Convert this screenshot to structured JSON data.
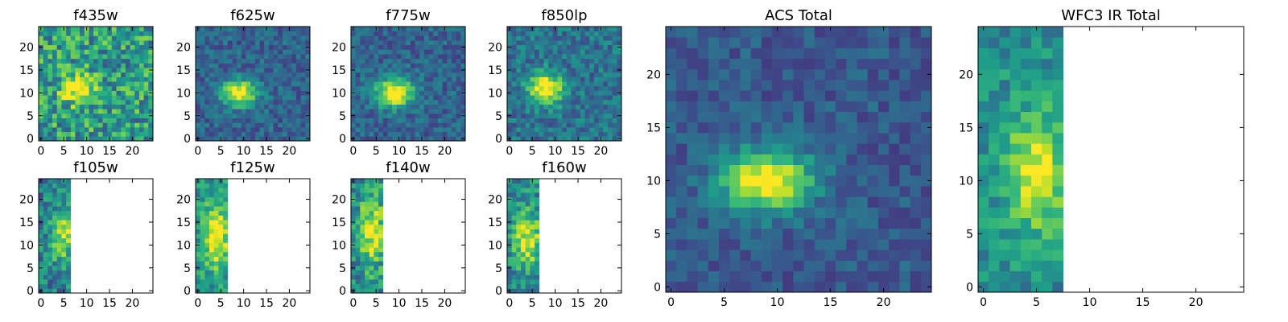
{
  "figure_title": "",
  "chart_data": [
    {
      "id": "f435w",
      "type": "heatmap",
      "title": "f435w",
      "xlim": [
        -0.5,
        24.5
      ],
      "ylim": [
        -0.5,
        24.5
      ],
      "xticks": [
        0,
        5,
        10,
        15,
        20
      ],
      "yticks": [
        0,
        5,
        10,
        15,
        20
      ],
      "cols_with_data": 25,
      "rows_with_data": 25,
      "colormap": "viridis",
      "pattern": "noisy background, weak peak near (8,11)"
    },
    {
      "id": "f625w",
      "type": "heatmap",
      "title": "f625w",
      "xlim": [
        -0.5,
        24.5
      ],
      "ylim": [
        -0.5,
        24.5
      ],
      "xticks": [
        0,
        5,
        10,
        15,
        20
      ],
      "yticks": [
        0,
        5,
        10,
        15,
        20
      ],
      "cols_with_data": 25,
      "rows_with_data": 25,
      "colormap": "viridis",
      "pattern": "source centred near (9,10)"
    },
    {
      "id": "f775w",
      "type": "heatmap",
      "title": "f775w",
      "xlim": [
        -0.5,
        24.5
      ],
      "ylim": [
        -0.5,
        24.5
      ],
      "xticks": [
        0,
        5,
        10,
        15,
        20
      ],
      "yticks": [
        0,
        5,
        10,
        15,
        20
      ],
      "cols_with_data": 25,
      "rows_with_data": 25,
      "colormap": "viridis",
      "pattern": "source centred near (9,10)"
    },
    {
      "id": "f850lp",
      "type": "heatmap",
      "title": "f850lp",
      "xlim": [
        -0.5,
        24.5
      ],
      "ylim": [
        -0.5,
        24.5
      ],
      "xticks": [
        0,
        5,
        10,
        15,
        20
      ],
      "yticks": [
        0,
        5,
        10,
        15,
        20
      ],
      "cols_with_data": 25,
      "rows_with_data": 25,
      "colormap": "viridis",
      "pattern": "source centred near (8,11)"
    },
    {
      "id": "acs_total",
      "type": "heatmap",
      "title": "ACS Total",
      "xlim": [
        -0.5,
        24.5
      ],
      "ylim": [
        -0.5,
        24.5
      ],
      "xticks": [
        0,
        5,
        10,
        15,
        20
      ],
      "yticks": [
        0,
        5,
        10,
        15,
        20
      ],
      "cols_with_data": 25,
      "rows_with_data": 25,
      "colormap": "viridis",
      "pattern": "bright source centred near (9,10)"
    },
    {
      "id": "f105w",
      "type": "heatmap",
      "title": "f105w",
      "xlim": [
        -0.5,
        24.5
      ],
      "ylim": [
        -0.5,
        24.5
      ],
      "xticks": [
        0,
        5,
        10,
        15,
        20
      ],
      "yticks": [
        0,
        5,
        10,
        15,
        20
      ],
      "cols_with_data": 7,
      "rows_with_data": 25,
      "colormap": "viridis",
      "pattern": "data only in columns 0-6"
    },
    {
      "id": "f125w",
      "type": "heatmap",
      "title": "f125w",
      "xlim": [
        -0.5,
        24.5
      ],
      "ylim": [
        -0.5,
        24.5
      ],
      "xticks": [
        0,
        5,
        10,
        15,
        20
      ],
      "yticks": [
        0,
        5,
        10,
        15,
        20
      ],
      "cols_with_data": 7,
      "rows_with_data": 25,
      "colormap": "viridis",
      "pattern": "data only in columns 0-6"
    },
    {
      "id": "f140w",
      "type": "heatmap",
      "title": "f140w",
      "xlim": [
        -0.5,
        24.5
      ],
      "ylim": [
        -0.5,
        24.5
      ],
      "xticks": [
        0,
        5,
        10,
        15,
        20
      ],
      "yticks": [
        0,
        5,
        10,
        15,
        20
      ],
      "cols_with_data": 7,
      "rows_with_data": 25,
      "colormap": "viridis",
      "pattern": "data only in columns 0-6"
    },
    {
      "id": "f160w",
      "type": "heatmap",
      "title": "f160w",
      "xlim": [
        -0.5,
        24.5
      ],
      "ylim": [
        -0.5,
        24.5
      ],
      "xticks": [
        0,
        5,
        10,
        15,
        20
      ],
      "yticks": [
        0,
        5,
        10,
        15,
        20
      ],
      "cols_with_data": 7,
      "rows_with_data": 25,
      "colormap": "viridis",
      "pattern": "data only in columns 0-6"
    },
    {
      "id": "wfc3_ir_total",
      "type": "heatmap",
      "title": "WFC3 IR Total",
      "xlim": [
        -0.5,
        24.5
      ],
      "ylim": [
        -0.5,
        24.5
      ],
      "xticks": [
        0,
        5,
        10,
        15,
        20
      ],
      "yticks": [
        0,
        5,
        10,
        15,
        20
      ],
      "cols_with_data": 8,
      "rows_with_data": 25,
      "colormap": "viridis",
      "pattern": "data only in columns 0-7"
    }
  ]
}
